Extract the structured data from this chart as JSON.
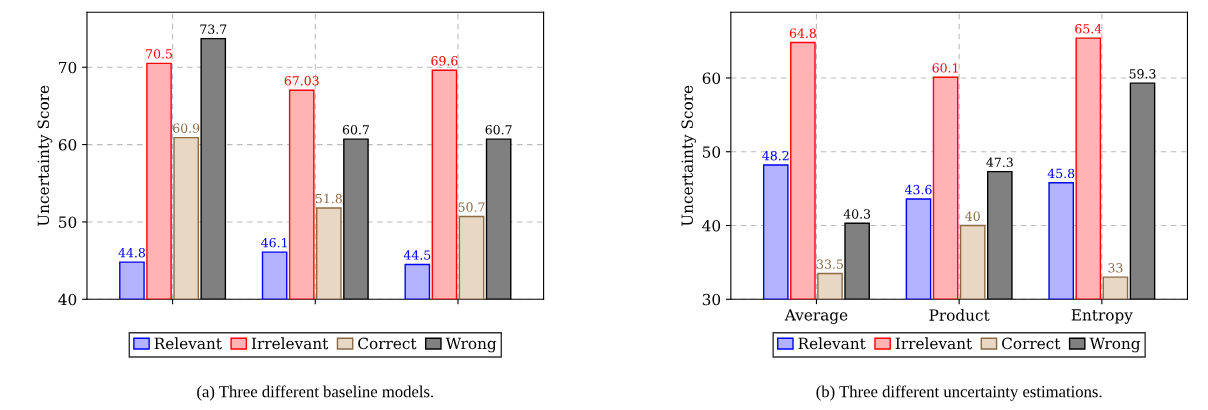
{
  "chart_data": [
    {
      "type": "bar",
      "ylabel": "Uncertainty Score",
      "categories": [
        null,
        null,
        null
      ],
      "ylim": [
        40,
        77.1
      ],
      "yticks": [
        40,
        50,
        60,
        70
      ],
      "grid": true,
      "legend": "bottom",
      "data_labels": true,
      "series": [
        {
          "name": "Relevant",
          "color": "#b3b3ff",
          "values": [
            44.8,
            46.1,
            44.5
          ]
        },
        {
          "name": "Irrelevant",
          "color": "#ffb3b3",
          "values": [
            70.5,
            67.03,
            69.6
          ]
        },
        {
          "name": "Correct",
          "color": "#e8d8c3",
          "values": [
            60.9,
            51.8,
            50.7
          ]
        },
        {
          "name": "Wrong",
          "color": "#808080",
          "values": [
            73.7,
            60.7,
            60.7
          ]
        }
      ],
      "annotations": [
        "(a) Three different baseline models."
      ]
    },
    {
      "type": "bar",
      "ylabel": "Uncertainty Score",
      "categories": [
        "Average",
        "Product",
        "Entropy"
      ],
      "ylim": [
        30,
        68.9
      ],
      "yticks": [
        30,
        40,
        50,
        60
      ],
      "grid": true,
      "legend": "bottom",
      "data_labels": true,
      "series": [
        {
          "name": "Relevant",
          "color": "#b3b3ff",
          "values": [
            48.2,
            43.6,
            45.8
          ]
        },
        {
          "name": "Irrelevant",
          "color": "#ffb3b3",
          "values": [
            64.8,
            60.1,
            65.4
          ]
        },
        {
          "name": "Correct",
          "color": "#e8d8c3",
          "values": [
            33.5,
            40,
            33
          ]
        },
        {
          "name": "Wrong",
          "color": "#808080",
          "values": [
            40.3,
            47.3,
            59.3
          ]
        }
      ],
      "annotations": [
        "(b) Three different uncertainty estimations."
      ]
    }
  ]
}
